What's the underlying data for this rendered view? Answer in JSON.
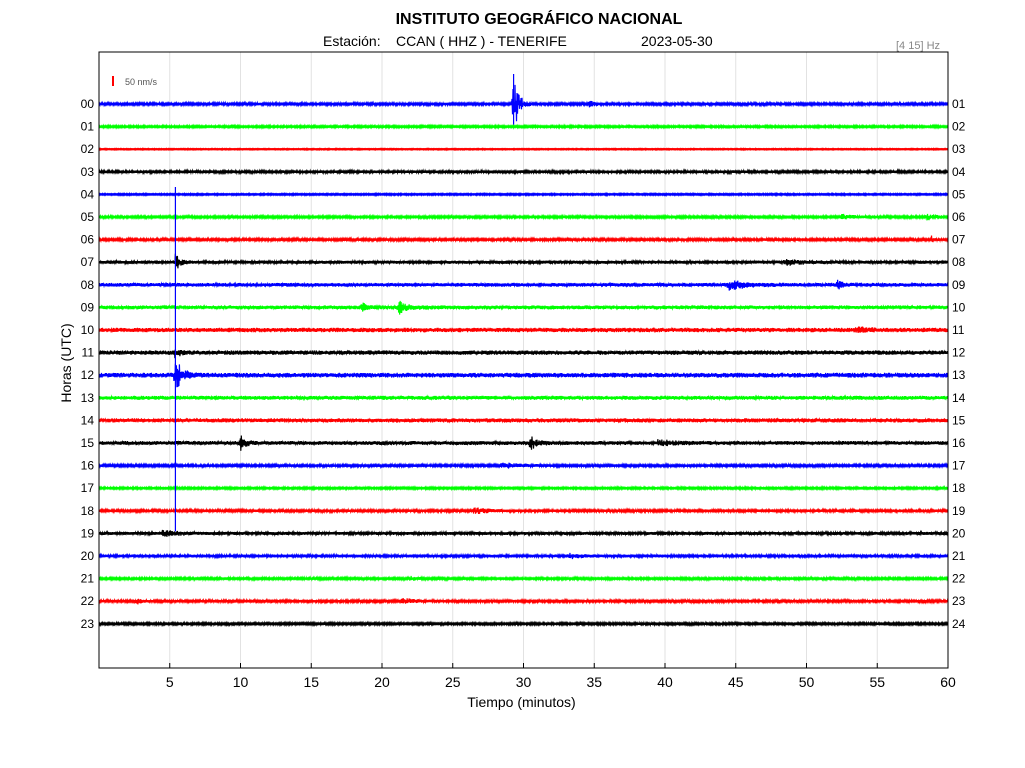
{
  "header": {
    "title": "INSTITUTO GEOGRÁFICO NACIONAL",
    "station_label": "Estación:",
    "station_value": "CCAN ( HHZ ) - TENERIFE",
    "date": "2023-05-30",
    "band": "[4 15] Hz"
  },
  "chart_data": {
    "type": "line",
    "xlabel": "Tiempo (minutos)",
    "ylabel": "Horas (UTC)",
    "xlim": [
      0,
      60
    ],
    "x_ticks": [
      5,
      10,
      15,
      20,
      25,
      30,
      35,
      40,
      45,
      50,
      55,
      60
    ],
    "grid": "vertical",
    "scale_bar": "50 nm/s",
    "scale_bar_color": "#ff0000",
    "left_labels": [
      "00",
      "01",
      "02",
      "03",
      "04",
      "05",
      "06",
      "07",
      "08",
      "09",
      "10",
      "11",
      "12",
      "13",
      "14",
      "15",
      "16",
      "17",
      "18",
      "19",
      "20",
      "21",
      "22",
      "23"
    ],
    "right_labels": [
      "01",
      "02",
      "03",
      "04",
      "05",
      "06",
      "07",
      "08",
      "09",
      "10",
      "11",
      "12",
      "13",
      "14",
      "15",
      "16",
      "17",
      "18",
      "19",
      "20",
      "21",
      "22",
      "23",
      "24"
    ],
    "trace_colors": [
      "#0000ff",
      "#00ff00",
      "#ff0000",
      "#000000"
    ],
    "noise_level": [
      1.2,
      1.0,
      0.6,
      1.4,
      0.8,
      1.1,
      1.2,
      1.6,
      1.9,
      2.0,
      2.2,
      2.2,
      2.4,
      2.0,
      2.1,
      1.9,
      1.2,
      1.0,
      1.3,
      1.5,
      1.5,
      1.1,
      1.2,
      1.1
    ],
    "events": [
      {
        "hour": 0,
        "minute": 29.3,
        "amplitude": 30,
        "duration": 0.6
      },
      {
        "hour": 0,
        "minute": 34.7,
        "amplitude": 4,
        "duration": 0.6
      },
      {
        "hour": 5,
        "minute": 52.5,
        "amplitude": 3,
        "duration": 1.5
      },
      {
        "hour": 5,
        "minute": 58.5,
        "amplitude": 3,
        "duration": 1.5
      },
      {
        "hour": 6,
        "minute": 58.9,
        "amplitude": 6,
        "duration": 0.2
      },
      {
        "hour": 7,
        "minute": 5.4,
        "amplitude": 8,
        "duration": 0.6
      },
      {
        "hour": 7,
        "minute": 48.5,
        "amplitude": 3,
        "duration": 2.0
      },
      {
        "hour": 8,
        "minute": 44.5,
        "amplitude": 5,
        "duration": 2.0
      },
      {
        "hour": 8,
        "minute": 52.2,
        "amplitude": 4,
        "duration": 0.6
      },
      {
        "hour": 9,
        "minute": 18.6,
        "amplitude": 6,
        "duration": 0.4
      },
      {
        "hour": 9,
        "minute": 21.2,
        "amplitude": 6,
        "duration": 1.0
      },
      {
        "hour": 10,
        "minute": 53.5,
        "amplitude": 4,
        "duration": 1.0
      },
      {
        "hour": 11,
        "minute": 5.4,
        "amplitude": 6,
        "duration": 0.5
      },
      {
        "hour": 12,
        "minute": 5.4,
        "amplitude": 16,
        "duration": 0.8
      },
      {
        "hour": 15,
        "minute": 10.0,
        "amplitude": 8,
        "duration": 0.6
      },
      {
        "hour": 15,
        "minute": 30.5,
        "amplitude": 7,
        "duration": 0.8
      },
      {
        "hour": 15,
        "minute": 39.5,
        "amplitude": 3,
        "duration": 2.0
      },
      {
        "hour": 16,
        "minute": 28.5,
        "amplitude": 3,
        "duration": 2.0
      },
      {
        "hour": 18,
        "minute": 26.5,
        "amplitude": 3,
        "duration": 2.0
      },
      {
        "hour": 19,
        "minute": 4.5,
        "amplitude": 3,
        "duration": 2.0
      },
      {
        "hour": 20,
        "minute": 33.2,
        "amplitude": 3,
        "duration": 1.0
      },
      {
        "hour": 21,
        "minute": 22.0,
        "amplitude": 3,
        "duration": 0.6
      },
      {
        "hour": 22,
        "minute": 2.7,
        "amplitude": 3,
        "duration": 0.6
      },
      {
        "hour": 22,
        "minute": 21.5,
        "amplitude": 3,
        "duration": 1.5
      }
    ],
    "spikes": [
      {
        "minute": 29.3,
        "from_hour": 0,
        "to_hour": 1,
        "color": "#0000ff"
      },
      {
        "minute": 5.4,
        "from_hour": 5,
        "to_hour": 19,
        "color": "#0000ff"
      }
    ]
  }
}
